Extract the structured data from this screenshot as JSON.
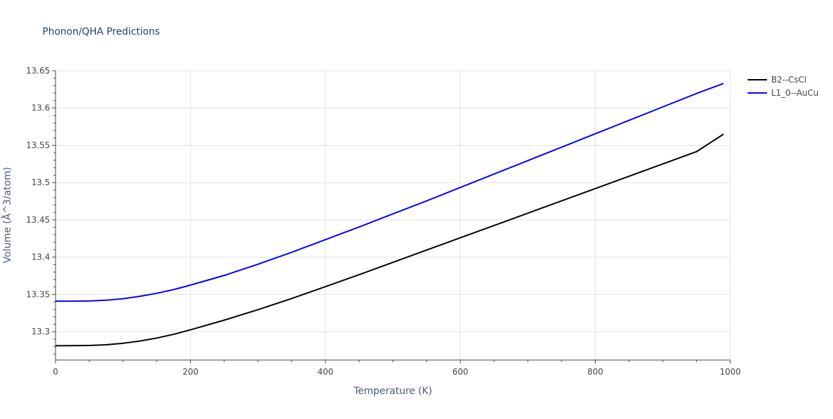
{
  "chart_data": {
    "type": "line",
    "title": "Phonon/QHA Predictions",
    "xlabel": "Temperature (K)",
    "ylabel": "Volume (Å^3/atom)",
    "xlim": [
      0,
      1000
    ],
    "ylim": [
      13.262,
      13.65
    ],
    "x_ticks": [
      0,
      200,
      400,
      600,
      800,
      1000
    ],
    "y_ticks": [
      13.3,
      13.35,
      13.4,
      13.45,
      13.5,
      13.55,
      13.6,
      13.65
    ],
    "grid": true,
    "legend_position": "top-right",
    "x": [
      0,
      25,
      50,
      75,
      100,
      125,
      150,
      175,
      200,
      250,
      300,
      350,
      400,
      450,
      500,
      550,
      600,
      650,
      700,
      750,
      800,
      850,
      900,
      950,
      990
    ],
    "series": [
      {
        "name": "B2--CsCl",
        "color": "#000000",
        "values": [
          13.2812,
          13.2813,
          13.2815,
          13.2825,
          13.2845,
          13.2875,
          13.2915,
          13.2965,
          13.3025,
          13.3155,
          13.3295,
          13.3445,
          13.3605,
          13.3765,
          13.393,
          13.4095,
          13.426,
          13.4425,
          13.459,
          13.4755,
          13.492,
          13.5085,
          13.525,
          13.5415,
          13.565
        ]
      },
      {
        "name": "L1_0--AuCu",
        "color": "#0000ff",
        "values": [
          13.341,
          13.341,
          13.3412,
          13.3422,
          13.3442,
          13.3475,
          13.3515,
          13.3565,
          13.3625,
          13.3755,
          13.3905,
          13.4065,
          13.4235,
          13.4405,
          13.458,
          13.4755,
          13.4935,
          13.5115,
          13.5295,
          13.5475,
          13.5655,
          13.5835,
          13.6015,
          13.6195,
          13.633
        ]
      }
    ]
  }
}
